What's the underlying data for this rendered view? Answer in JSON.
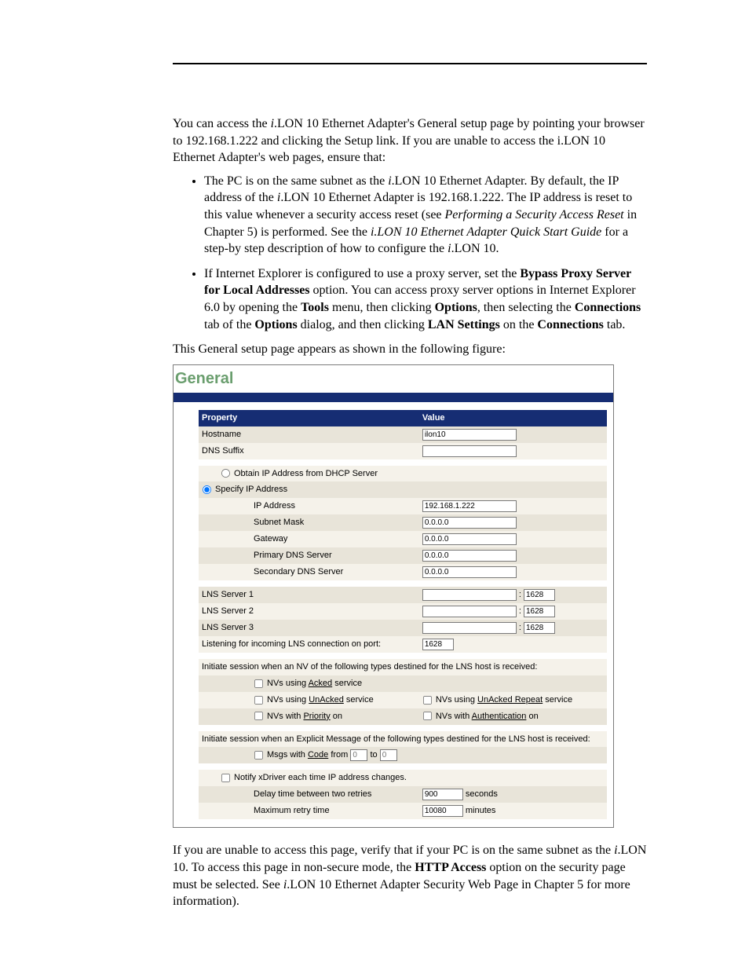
{
  "intro": {
    "p1_a": "You can access the ",
    "p1_i1": "i",
    "p1_b": ".LON 10 Ethernet Adapter's General setup page by pointing your browser to 192.168.1.222 and clicking the Setup link.  If you are unable to access the i.LON 10 Ethernet Adapter's web pages, ensure that:"
  },
  "bullets": {
    "b1_a": "The PC is on the same subnet as the ",
    "b1_i1": "i",
    "b1_b": ".LON 10 Ethernet Adapter.  By default, the IP address of the ",
    "b1_i2": "i",
    "b1_c": ".LON 10 Ethernet Adapter is 192.168.1.222.  The IP address is reset to this value whenever a security access reset (see ",
    "b1_it1": "Performing a Security Access Reset",
    "b1_d": " in Chapter 5) is performed.  See the ",
    "b1_it2": "i.LON 10 Ethernet Adapter Quick Start Guide",
    "b1_e": " for a step-by step description of how to configure the ",
    "b1_i3": "i",
    "b1_f": ".LON 10.",
    "b2_a": "If Internet Explorer is configured to use a proxy server, set the ",
    "b2_bold1": "Bypass Proxy Server for Local Addresses",
    "b2_b": " option.  You can access proxy server options in Internet Explorer 6.0 by opening the ",
    "b2_bold2": "Tools",
    "b2_c": " menu, then clicking ",
    "b2_bold3": "Options",
    "b2_d": ", then selecting the ",
    "b2_bold4": "Connections",
    "b2_e": " tab of the ",
    "b2_bold5": "Options",
    "b2_f": " dialog, and then clicking ",
    "b2_bold6": "LAN Settings",
    "b2_g": " on the ",
    "b2_bold7": "Connections",
    "b2_h": " tab."
  },
  "pre_figure": "This General setup page appears as shown in the following figure:",
  "form": {
    "title": "General",
    "head_prop": "Property",
    "head_val": "Value",
    "hostname_label": "Hostname",
    "hostname_value": "ilon10",
    "dns_suffix_label": "DNS Suffix",
    "dns_suffix_value": "",
    "dhcp_label": "Obtain IP Address from DHCP Server",
    "specify_label": "Specify IP Address",
    "ip_label": "IP Address",
    "ip_value": "192.168.1.222",
    "mask_label": "Subnet Mask",
    "mask_value": "0.0.0.0",
    "gw_label": "Gateway",
    "gw_value": "0.0.0.0",
    "pdns_label": "Primary DNS Server",
    "pdns_value": "0.0.0.0",
    "sdns_label": "Secondary DNS Server",
    "sdns_value": "0.0.0.0",
    "lns1_label": "LNS Server 1",
    "lns2_label": "LNS Server 2",
    "lns3_label": "LNS Server 3",
    "lns_server_value": "",
    "port_sep": " : ",
    "lns_port": "1628",
    "listen_label": "Listening for incoming LNS connection on port:",
    "listen_port": "1628",
    "init_nv_label": "Initiate session when an NV of the following types destined for the LNS host is received:",
    "nv_acked_a": "NVs using ",
    "nv_acked_u": "Acked",
    "nv_acked_b": " service",
    "nv_unacked_a": "NVs using ",
    "nv_unacked_u": "UnAcked",
    "nv_unacked_b": " service",
    "nv_unacked_rep_a": "NVs using ",
    "nv_unacked_rep_u": "UnAcked Repeat",
    "nv_unacked_rep_b": " service",
    "nv_priority_a": "NVs with ",
    "nv_priority_u": "Priority",
    "nv_priority_b": " on",
    "nv_auth_a": "NVs with ",
    "nv_auth_u": "Authentication",
    "nv_auth_b": " on",
    "init_msg_label": "Initiate session when an Explicit Message of the following types destined for the LNS host is received:",
    "msgs_code_a": "Msgs with ",
    "msgs_code_u": "Code",
    "msgs_code_b": " from ",
    "msgs_code_from": "0",
    "msgs_code_to_label": " to ",
    "msgs_code_to": "0",
    "notify_label": "Notify xDriver each time IP address changes.",
    "delay_label": "Delay time between two retries",
    "delay_value": "900",
    "delay_unit": " seconds",
    "maxretry_label": "Maximum retry time",
    "maxretry_value": "10080",
    "maxretry_unit": " minutes"
  },
  "outro": {
    "p_a": "If you are unable to access this page, verify that if your PC is on the same subnet as the ",
    "p_i1": "i",
    "p_b": ".LON 10.  To access this page in non-secure mode, the ",
    "p_bold": "HTTP Access",
    "p_c": " option on the security page must be selected.  See ",
    "p_i2": "i",
    "p_d": ".LON 10 Ethernet Adapter Security Web Page in Chapter 5 for more information)."
  }
}
